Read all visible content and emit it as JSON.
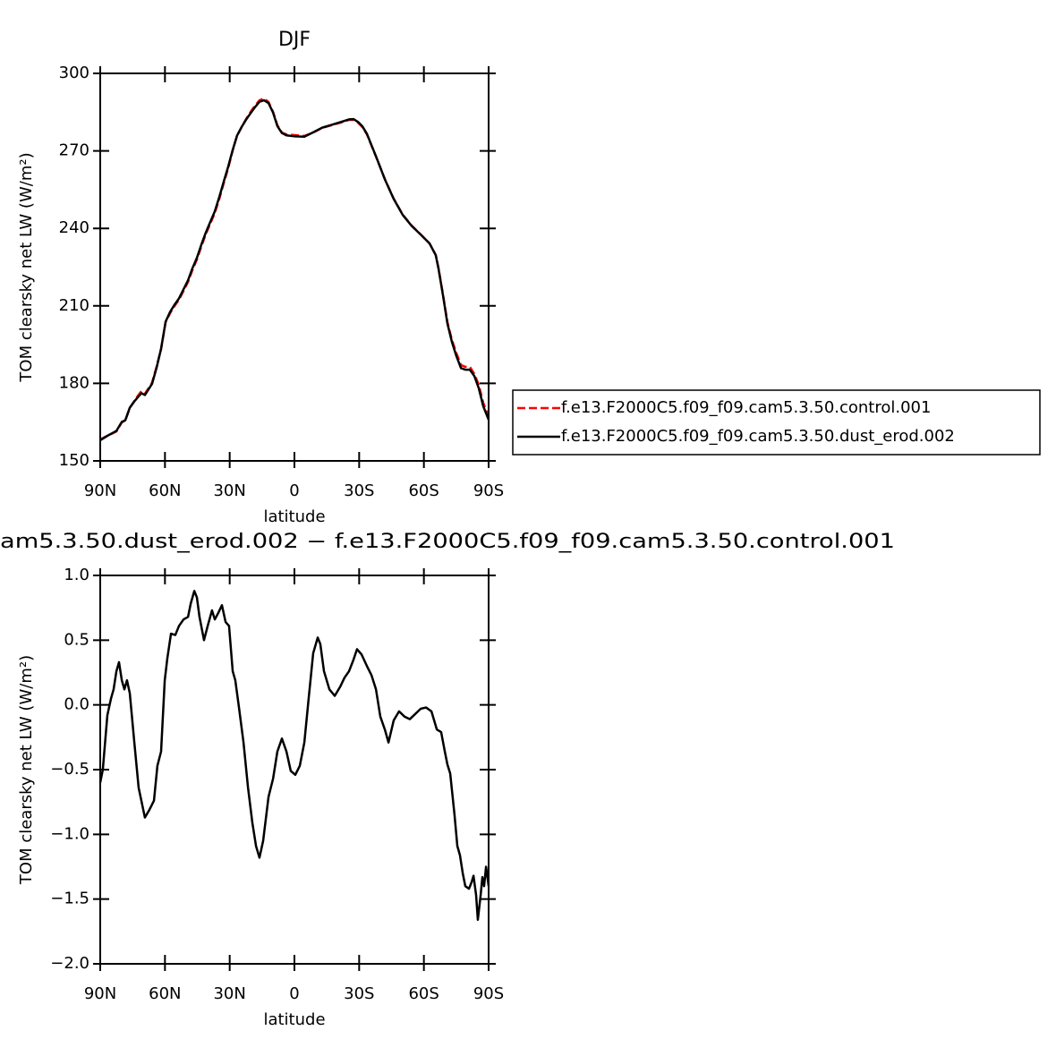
{
  "chart_data": [
    {
      "type": "line",
      "title": "DJF",
      "ylabel": "TOM clearsky net LW (W/m²)",
      "xlabel": "latitude",
      "xlim": [
        90,
        -90
      ],
      "xticks": [
        {
          "value": 90,
          "label": "90N"
        },
        {
          "value": 60,
          "label": "60N"
        },
        {
          "value": 30,
          "label": "30N"
        },
        0,
        {
          "value": -30,
          "label": "30S"
        },
        {
          "value": -60,
          "label": "60S"
        },
        {
          "value": -90,
          "label": "90S"
        }
      ],
      "ylim": [
        150,
        300
      ],
      "yticks": [
        150,
        180,
        210,
        240,
        270,
        300
      ],
      "legend": "right",
      "x": [
        90,
        86.7,
        82.5,
        80.0,
        78.4,
        76.3,
        74.2,
        72.2,
        70.9,
        69.3,
        66.0,
        63.9,
        61.8,
        59.7,
        57.6,
        55.6,
        53.5,
        51.4,
        49.3,
        47.3,
        45.2,
        43.1,
        41.1,
        39.0,
        36.9,
        34.8,
        32.8,
        30.7,
        28.6,
        26.6,
        24.5,
        22.4,
        20.3,
        18.3,
        16.2,
        14.1,
        12.0,
        9.9,
        7.9,
        5.8,
        3.7,
        -0.4,
        -4.6,
        -8.7,
        -12.9,
        -17.0,
        -21.2,
        -25.3,
        -27.4,
        -29.5,
        -31.5,
        -33.6,
        -37.8,
        -41.9,
        -46.0,
        -50.2,
        -54.3,
        -58.5,
        -62.6,
        -65.5,
        -66.8,
        -68.9,
        -70.9,
        -73.0,
        -75.1,
        -77.2,
        -79.2,
        -81.3,
        -83.4,
        -85.4,
        -87.5,
        -90
      ],
      "series": [
        {
          "name": "f.e13.F2000C5.f09_f09.cam5.3.50.control.001",
          "color": "#ff0000",
          "linestyle": "dashed",
          "values": [
            158.3,
            159.7,
            161.4,
            164.9,
            165.6,
            170.5,
            173.2,
            175.6,
            177.0,
            176.0,
            180.2,
            186.4,
            193.3,
            203.7,
            207.2,
            209.9,
            212.4,
            215.8,
            219.3,
            223.8,
            228.0,
            233.1,
            237.7,
            241.8,
            246.0,
            251.5,
            257.4,
            263.3,
            270.2,
            275.8,
            279.2,
            282.3,
            285.1,
            287.5,
            289.6,
            290.3,
            288.9,
            285.1,
            279.9,
            277.1,
            276.4,
            276.1,
            275.8,
            277.1,
            278.9,
            279.9,
            280.9,
            282.0,
            282.0,
            280.9,
            279.2,
            276.4,
            267.8,
            259.1,
            251.5,
            245.3,
            241.1,
            237.7,
            234.2,
            229.7,
            224.5,
            214.1,
            203.7,
            196.8,
            191.6,
            187.1,
            186.4,
            186.4,
            183.6,
            179.5,
            172.5,
            167.3
          ]
        },
        {
          "name": "f.e13.F2000C5.f09_f09.cam5.3.50.dust_erod.002",
          "color": "#000000",
          "linestyle": "solid",
          "values": [
            158.0,
            159.7,
            161.6,
            165.1,
            165.7,
            170.6,
            173.0,
            175.0,
            176.2,
            175.5,
            179.8,
            186.0,
            193.4,
            203.9,
            207.7,
            210.4,
            212.9,
            216.4,
            219.9,
            224.5,
            228.6,
            233.8,
            238.3,
            242.5,
            246.6,
            252.2,
            258.0,
            263.9,
            270.4,
            275.9,
            279.2,
            282.1,
            284.6,
            286.9,
            289.0,
            289.6,
            288.5,
            284.8,
            279.6,
            276.9,
            276.0,
            275.6,
            275.5,
            277.2,
            279.0,
            280.0,
            281.1,
            282.2,
            282.3,
            281.2,
            279.5,
            276.6,
            267.9,
            259.0,
            251.4,
            245.2,
            241.0,
            237.6,
            234.2,
            229.6,
            224.3,
            213.8,
            203.2,
            196.0,
            190.5,
            185.9,
            185.3,
            185.3,
            182.8,
            178.2,
            171.2,
            165.9
          ]
        }
      ]
    },
    {
      "type": "line",
      "title": "am5.3.50.dust_erod.002 − f.e13.F2000C5.f09_f09.cam5.3.50.control.001",
      "ylabel": "TOM clearsky net LW (W/m²)",
      "xlabel": "latitude",
      "xlim": [
        90,
        -90
      ],
      "xticks": [
        {
          "value": 90,
          "label": "90N"
        },
        {
          "value": 60,
          "label": "60N"
        },
        {
          "value": 30,
          "label": "30N"
        },
        0,
        {
          "value": -30,
          "label": "30S"
        },
        {
          "value": -60,
          "label": "60S"
        },
        {
          "value": -90,
          "label": "90S"
        }
      ],
      "ylim": [
        -2,
        1
      ],
      "yticks": [
        {
          "value": -2,
          "label": "−2.0"
        },
        {
          "value": -1.5,
          "label": "−1.5"
        },
        {
          "value": -1,
          "label": "−1.0"
        },
        {
          "value": -0.5,
          "label": "−0.5"
        },
        {
          "value": 0,
          "label": "0.0"
        },
        0.5,
        {
          "value": 1,
          "label": "1.0"
        }
      ],
      "x": [
        90,
        88.8,
        86.7,
        85.0,
        83.8,
        82.5,
        81.3,
        80.0,
        78.8,
        77.6,
        76.3,
        74.2,
        72.2,
        69.3,
        67.2,
        65.1,
        63.5,
        61.8,
        60.1,
        58.9,
        57.2,
        55.2,
        53.5,
        51.4,
        49.3,
        48.1,
        46.4,
        45.2,
        44.0,
        41.9,
        40.2,
        38.2,
        36.9,
        35.3,
        33.6,
        31.9,
        30.3,
        28.6,
        27.4,
        25.7,
        23.6,
        21.5,
        19.5,
        17.8,
        16.2,
        14.5,
        12.0,
        9.9,
        7.9,
        5.8,
        3.7,
        1.7,
        -0.4,
        -2.5,
        -4.6,
        -6.6,
        -8.7,
        -10.8,
        -12.0,
        -13.7,
        -16.2,
        -18.7,
        -21.2,
        -23.2,
        -25.3,
        -27.4,
        -29.0,
        -31.1,
        -33.6,
        -35.7,
        -37.8,
        -39.8,
        -41.9,
        -43.6,
        -46.0,
        -48.5,
        -51.0,
        -53.5,
        -56.0,
        -58.5,
        -61.0,
        -63.5,
        -66.0,
        -68.0,
        -69.7,
        -70.9,
        -72.2,
        -74.2,
        -75.5,
        -76.7,
        -78.0,
        -79.2,
        -80.9,
        -82.1,
        -83.0,
        -84.2,
        -85.0,
        -86.3,
        -87.1,
        -87.9,
        -88.8,
        -90
      ],
      "series": [
        {
          "color": "#000000",
          "linestyle": "solid",
          "values": [
            -0.6,
            -0.5,
            -0.08,
            0.05,
            0.12,
            0.26,
            0.33,
            0.19,
            0.12,
            0.19,
            0.09,
            -0.29,
            -0.64,
            -0.87,
            -0.81,
            -0.74,
            -0.47,
            -0.36,
            0.19,
            0.36,
            0.55,
            0.54,
            0.61,
            0.66,
            0.68,
            0.78,
            0.88,
            0.83,
            0.68,
            0.5,
            0.61,
            0.73,
            0.66,
            0.71,
            0.77,
            0.64,
            0.61,
            0.26,
            0.19,
            -0.02,
            -0.29,
            -0.64,
            -0.91,
            -1.09,
            -1.18,
            -1.05,
            -0.71,
            -0.57,
            -0.36,
            -0.26,
            -0.36,
            -0.51,
            -0.54,
            -0.47,
            -0.29,
            0.05,
            0.4,
            0.52,
            0.47,
            0.26,
            0.12,
            0.07,
            0.14,
            0.21,
            0.26,
            0.35,
            0.43,
            0.39,
            0.3,
            0.23,
            0.12,
            -0.09,
            -0.19,
            -0.29,
            -0.12,
            -0.05,
            -0.09,
            -0.11,
            -0.07,
            -0.03,
            -0.02,
            -0.05,
            -0.19,
            -0.21,
            -0.36,
            -0.46,
            -0.53,
            -0.85,
            -1.09,
            -1.16,
            -1.3,
            -1.4,
            -1.42,
            -1.37,
            -1.32,
            -1.47,
            -1.66,
            -1.47,
            -1.33,
            -1.4,
            -1.25,
            -1.4
          ]
        }
      ]
    }
  ]
}
